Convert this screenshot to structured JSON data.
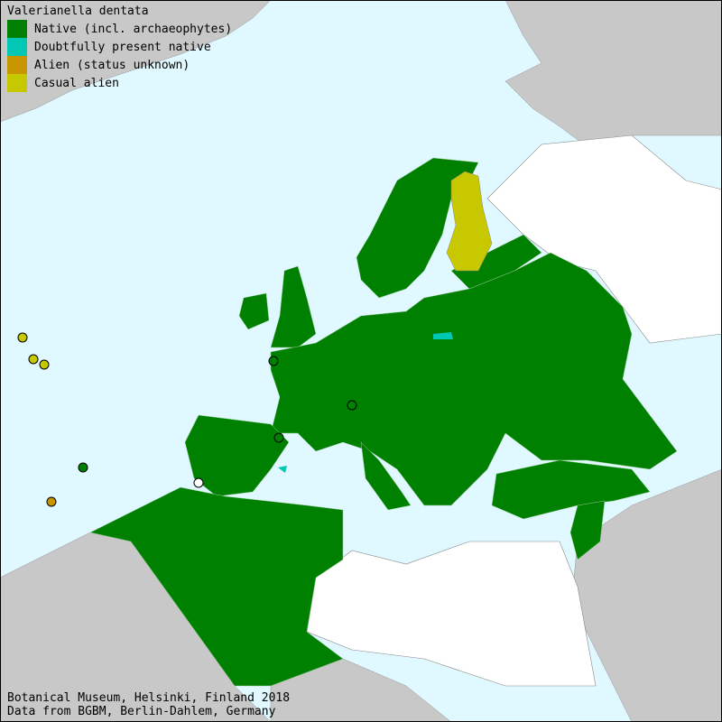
{
  "title": "Valerianella dentata",
  "legend": [
    {
      "label": "Native (incl. archaeophytes)",
      "color": "#008000"
    },
    {
      "label": "Doubtfully present native",
      "color": "#00c8b4"
    },
    {
      "label": "Alien (status unknown)",
      "color": "#c89600"
    },
    {
      "label": "Casual alien",
      "color": "#c8c800"
    }
  ],
  "colors": {
    "sea": "#e0f8ff",
    "land_outside": "#c8c8c8",
    "absent": "#ffffff"
  },
  "footer": {
    "line1": "Botanical Museum, Helsinki, Finland 2018",
    "line2": "Data from BGBM, Berlin-Dahlem, Germany"
  }
}
